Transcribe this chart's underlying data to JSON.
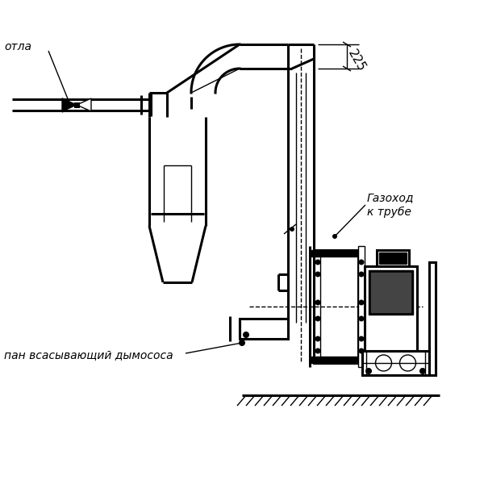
{
  "bg_color": "#ffffff",
  "label_otla": "отла",
  "label_gazohod": "Газоход",
  "label_trube": "к трубе",
  "label_patrubок": "пан всасывающий дымососа",
  "dim_225": "225",
  "figsize": [
    6.0,
    6.0
  ],
  "dpi": 100
}
